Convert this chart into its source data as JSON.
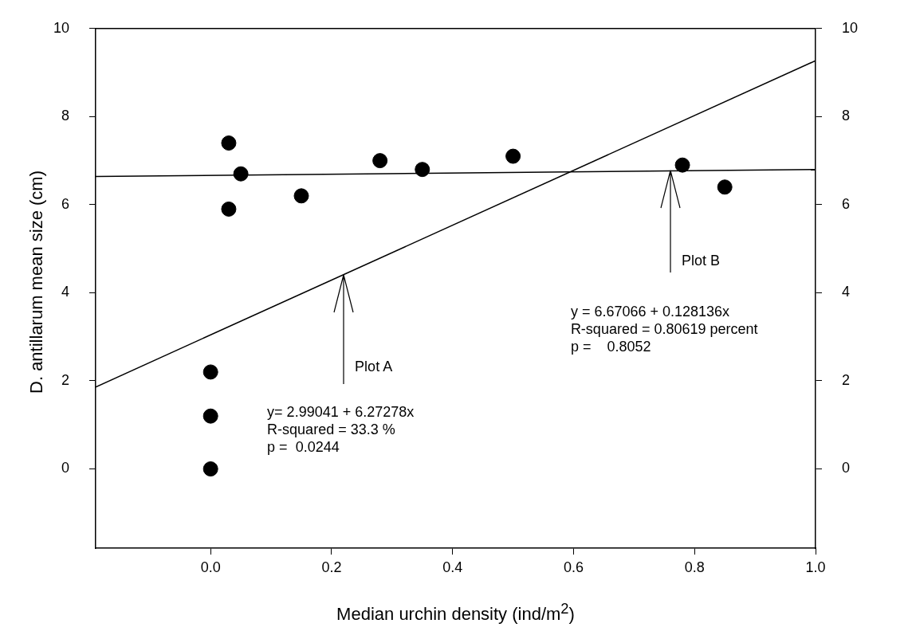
{
  "chart_data": {
    "type": "scatter",
    "xlabel": "Median urchin density (ind/m$^{2}$)",
    "ylabel": "D. antillarum mean size (cm)",
    "xlim": [
      -0.19,
      1.0
    ],
    "xticks": [
      {
        "value": 0,
        "label": "0.0"
      },
      {
        "value": 0.2,
        "label": "0.2"
      },
      {
        "value": 0.4,
        "label": "0.4"
      },
      {
        "value": 0.6,
        "label": "0.6"
      },
      {
        "value": 0.8,
        "label": "0.8"
      },
      {
        "value": 1.0,
        "label": "1.0"
      }
    ],
    "ylim": [
      -1.8,
      10
    ],
    "yticks": [
      0,
      2,
      4,
      6,
      8,
      10
    ],
    "y2lim": [
      -1.8,
      10
    ],
    "y2ticks": [
      0,
      2,
      4,
      6,
      8,
      10
    ],
    "grid": false,
    "legend": false,
    "series": [
      {
        "color": "#000000",
        "marker": "circle",
        "x": [
          0,
          0,
          0,
          0.03,
          0.03,
          0.05,
          0.15,
          0.28,
          0.35,
          0.5,
          0.78,
          0.85
        ],
        "values": [
          0,
          1.2,
          2.2,
          5.9,
          7.4,
          6.7,
          6.2,
          7.0,
          6.8,
          7.1,
          6.9,
          6.4
        ]
      },
      {
        "type": "line",
        "color": "#000000",
        "line_style": "solid",
        "marker": "none",
        "x": [
          -0.19,
          1.0
        ],
        "values": [
          1.86,
          9.27
        ]
      },
      {
        "type": "line",
        "color": "#000000",
        "line_style": "solid",
        "marker": "none",
        "x": [
          -0.19,
          1.0
        ],
        "values": [
          6.64,
          6.8
        ]
      }
    ],
    "annotations": [
      {
        "text": "Plot A",
        "x": 0.22,
        "y": 4.41
      },
      "y= 2.99041 + 6.27278x",
      "R-squared = 33.3 %",
      "p =  0.0244",
      {
        "text": "Plot B",
        "x": 0.76,
        "y": 6.77
      },
      "y = 6.67066 + 0.128136x",
      "R-squared = 0.80619 percent",
      "p =    0.8052"
    ]
  }
}
